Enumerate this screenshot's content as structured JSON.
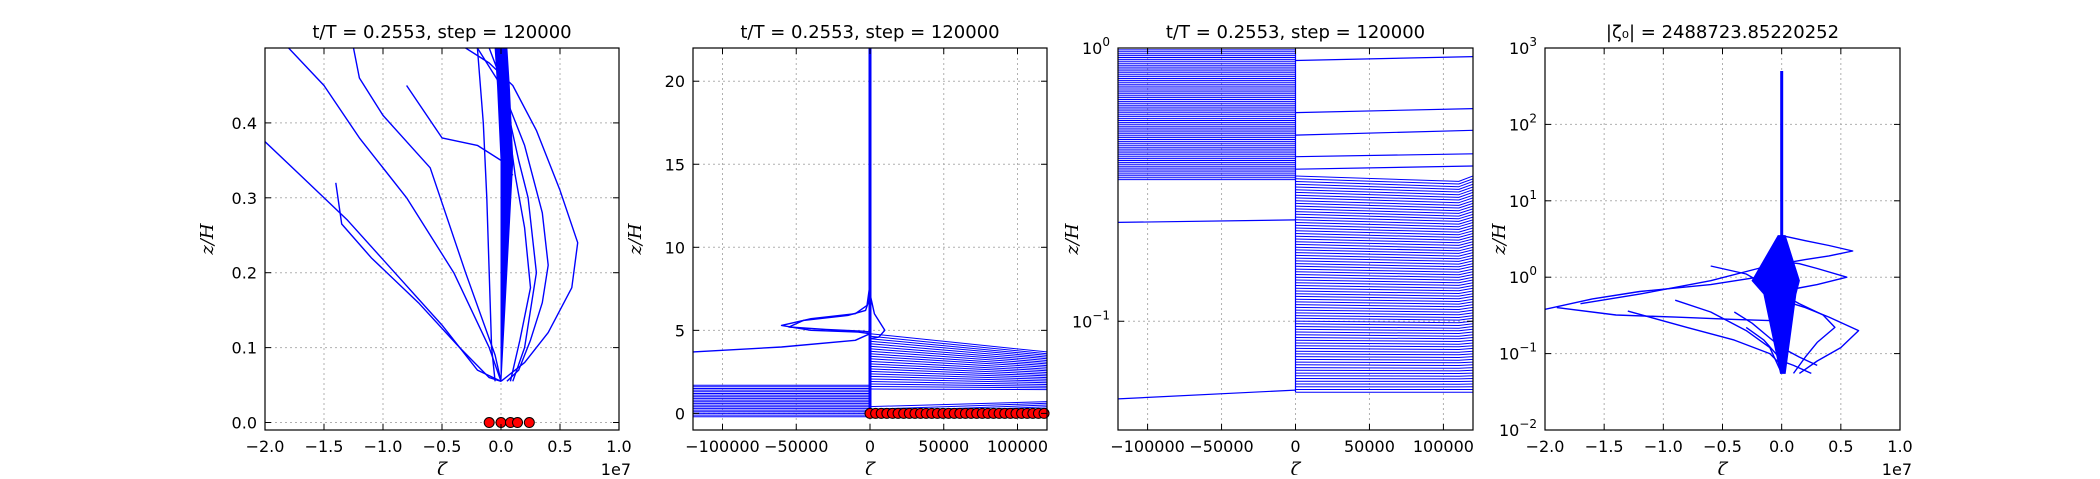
{
  "chart_data": [
    {
      "type": "line",
      "title": "t/T = 0.2553, step = 120000",
      "xlabel": "ζ",
      "ylabel": "z/H",
      "xscale": "linear",
      "yscale": "linear",
      "xlim": [
        -20000000,
        10000000
      ],
      "ylim": [
        -0.01,
        0.5
      ],
      "xticks": [
        -20000000,
        -15000000,
        -10000000,
        -5000000,
        0,
        5000000,
        10000000
      ],
      "xtick_labels": [
        "−2.0",
        "−1.5",
        "−1.0",
        "−0.5",
        "0.0",
        "0.5",
        "1.0"
      ],
      "yticks": [
        0.0,
        0.1,
        0.2,
        0.3,
        0.4
      ],
      "ytick_labels": [
        "0.0",
        "0.1",
        "0.2",
        "0.3",
        "0.4"
      ],
      "offset_label": "1e7",
      "grid": true,
      "line_color": "#0000ff",
      "marker_color": "#ff0000",
      "series": [
        {
          "x": [
            -18000000,
            -15000000,
            -12000000,
            -8000000,
            -4000000,
            -1000000,
            0
          ],
          "y": [
            0.5,
            0.45,
            0.38,
            0.3,
            0.2,
            0.1,
            0.055
          ]
        },
        {
          "x": [
            -20000000,
            -17000000,
            -13000000,
            -9000000,
            -5000000,
            -2000000,
            0
          ],
          "y": [
            0.375,
            0.33,
            0.27,
            0.2,
            0.13,
            0.07,
            0.055
          ]
        },
        {
          "x": [
            -14000000,
            -13500000,
            -11000000,
            -7000000,
            -3500000,
            -1000000,
            0
          ],
          "y": [
            0.32,
            0.265,
            0.22,
            0.16,
            0.1,
            0.06,
            0.055
          ]
        },
        {
          "x": [
            -12500000,
            -12000000,
            -10000000,
            -6000000,
            -3000000,
            -500000,
            0
          ],
          "y": [
            0.5,
            0.46,
            0.41,
            0.34,
            0.2,
            0.09,
            0.055
          ]
        },
        {
          "x": [
            -8000000,
            -5000000,
            -2000000,
            0,
            1000000
          ],
          "y": [
            0.45,
            0.38,
            0.37,
            0.35,
            0.33
          ]
        },
        {
          "x": [
            -2000000,
            -1500000,
            -1200000,
            -1000000,
            -800000,
            -500000
          ],
          "y": [
            0.5,
            0.4,
            0.3,
            0.2,
            0.1,
            0.055
          ]
        },
        {
          "x": [
            -3000000,
            -1000000,
            1000000,
            3000000,
            5000000,
            6500000,
            6000000,
            4000000,
            2000000,
            0
          ],
          "y": [
            0.5,
            0.48,
            0.45,
            0.39,
            0.31,
            0.24,
            0.18,
            0.12,
            0.08,
            0.055
          ]
        },
        {
          "x": [
            -2000000,
            0,
            2000000,
            3500000,
            4000000,
            3500000,
            2500000,
            1500000,
            500000
          ],
          "y": [
            0.5,
            0.45,
            0.37,
            0.28,
            0.21,
            0.16,
            0.11,
            0.07,
            0.055
          ]
        },
        {
          "x": [
            -1000000,
            200000,
            800000,
            1500000,
            2300000,
            3000000,
            2000000,
            1000000
          ],
          "y": [
            0.5,
            0.45,
            0.4,
            0.35,
            0.3,
            0.2,
            0.1,
            0.055
          ]
        },
        {
          "x": [
            0,
            300000,
            600000,
            1200000,
            2000000,
            2500000,
            1600000,
            800000
          ],
          "y": [
            0.5,
            0.46,
            0.4,
            0.33,
            0.26,
            0.18,
            0.11,
            0.055
          ]
        }
      ],
      "band": {
        "x_left": [
          -500000,
          -300000,
          0,
          0
        ],
        "x_right": [
          500000,
          700000,
          1000000,
          0
        ],
        "y": [
          0.5,
          0.45,
          0.35,
          0.055
        ]
      },
      "markers": {
        "x": [
          -1000000,
          0,
          800000,
          1400000,
          2400000
        ],
        "y": [
          0,
          0,
          0,
          0,
          0
        ]
      }
    },
    {
      "type": "line",
      "title": "t/T = 0.2553, step = 120000",
      "xlabel": "ζ",
      "ylabel": "z/H",
      "xscale": "linear",
      "yscale": "linear",
      "xlim": [
        -120000,
        120000
      ],
      "ylim": [
        -1,
        22
      ],
      "xticks": [
        -100000,
        -50000,
        0,
        50000,
        100000
      ],
      "xtick_labels": [
        "−100000",
        "−50000",
        "0",
        "50000",
        "100000"
      ],
      "yticks": [
        0,
        5,
        10,
        15,
        20
      ],
      "ytick_labels": [
        "0",
        "5",
        "10",
        "15",
        "20"
      ],
      "grid": true,
      "line_color": "#0000ff",
      "marker_color": "#ff0000",
      "series": [
        {
          "x": [
            0,
            -2000,
            -10000,
            -40000,
            -60000,
            -40000,
            -8000,
            0
          ],
          "y": [
            7.8,
            6.5,
            6.0,
            5.7,
            5.3,
            5.0,
            4.9,
            4.8
          ]
        },
        {
          "x": [
            0,
            -3000,
            -15000,
            -45000,
            -55000,
            -30000,
            -5000,
            0
          ],
          "y": [
            7.0,
            6.2,
            5.9,
            5.6,
            5.2,
            5.05,
            4.95,
            4.9
          ]
        },
        {
          "x": [
            0,
            3000,
            10000,
            6000,
            0
          ],
          "y": [
            7.2,
            6.0,
            5.0,
            4.6,
            4.5
          ]
        },
        {
          "x": [
            -120000,
            -60000,
            -10000,
            0
          ],
          "y": [
            3.7,
            4.0,
            4.4,
            4.8
          ]
        }
      ],
      "spike": {
        "x": 0,
        "y_from": 0,
        "y_to": 22
      },
      "dense_left": {
        "y_from": -0.2,
        "y_to": 1.7,
        "x_from": -120000,
        "x_to": 0
      },
      "dense_right": {
        "y_from_left": [
          -0.2,
          4.8
        ],
        "y_from_right": [
          0.3,
          3.7
        ],
        "gap": [
          0.5,
          1.4
        ],
        "x_from": 0,
        "x_to": 120000
      },
      "markers": {
        "x_from": 0,
        "x_to": 118000,
        "count": 32,
        "y": 0
      }
    },
    {
      "type": "line",
      "title": "t/T = 0.2553, step = 120000",
      "xlabel": "ζ",
      "ylabel": "z/H",
      "xscale": "linear",
      "yscale": "log",
      "xlim": [
        -120000,
        120000
      ],
      "ylim": [
        0.04,
        1
      ],
      "xticks": [
        -100000,
        -50000,
        0,
        50000,
        100000
      ],
      "xtick_labels": [
        "−100000",
        "−50000",
        "0",
        "50000",
        "100000"
      ],
      "yticks": [
        0.1,
        1
      ],
      "ytick_labels": [
        "10^-1",
        "10^0"
      ],
      "grid": true,
      "line_color": "#0000ff",
      "blocks": [
        {
          "x_from": -120000,
          "x_to": 0,
          "y_from": 0.33,
          "y_to": 1.0,
          "lines": 70
        },
        {
          "x_from": 0,
          "x_to": 120000,
          "y_from": 0.055,
          "y_to": 0.34,
          "lines": 80,
          "chevron": true
        }
      ],
      "single_lines": [
        {
          "x": [
            -120000,
            0
          ],
          "y": [
            0.23,
            0.235
          ]
        },
        {
          "x": [
            -120000,
            0
          ],
          "y": [
            0.052,
            0.056
          ]
        },
        {
          "x": [
            0,
            120000
          ],
          "y": [
            0.9,
            0.93
          ]
        },
        {
          "x": [
            0,
            120000
          ],
          "y": [
            0.58,
            0.6
          ]
        },
        {
          "x": [
            0,
            120000
          ],
          "y": [
            0.48,
            0.5
          ]
        },
        {
          "x": [
            0,
            120000
          ],
          "y": [
            0.4,
            0.41
          ]
        },
        {
          "x": [
            0,
            120000
          ],
          "y": [
            0.36,
            0.37
          ]
        }
      ]
    },
    {
      "type": "line",
      "title": "|ζ₀| = 2488723.85220252",
      "xlabel": "ζ",
      "ylabel": "z/H",
      "xscale": "linear",
      "yscale": "log",
      "xlim": [
        -20000000,
        10000000
      ],
      "ylim": [
        0.01,
        1000
      ],
      "xticks": [
        -20000000,
        -15000000,
        -10000000,
        -5000000,
        0,
        5000000,
        10000000
      ],
      "xtick_labels": [
        "−2.0",
        "−1.5",
        "−1.0",
        "−0.5",
        "0.0",
        "0.5",
        "1.0"
      ],
      "yticks": [
        0.01,
        0.1,
        1,
        10,
        100,
        1000
      ],
      "ytick_labels": [
        "10^-2",
        "10^-1",
        "10^0",
        "10^1",
        "10^2",
        "10^3"
      ],
      "offset_label": "1e7",
      "grid": true,
      "line_color": "#0000ff",
      "spike": {
        "x": 0,
        "y_from": 0.055,
        "y_to": 500
      },
      "series": [
        {
          "x": [
            -20000000,
            -16000000,
            -12000000,
            -6000000,
            -2000000,
            0
          ],
          "y": [
            0.38,
            0.52,
            0.65,
            0.8,
            1.0,
            1.2
          ]
        },
        {
          "x": [
            -19000000,
            -14000000,
            -9000000,
            -4000000,
            -1000000,
            0
          ],
          "y": [
            0.4,
            0.32,
            0.3,
            0.28,
            0.27,
            0.26
          ]
        },
        {
          "x": [
            -17000000,
            -12000000,
            -6000000,
            -2000000,
            0
          ],
          "y": [
            0.45,
            0.6,
            0.9,
            1.3,
            1.6
          ]
        },
        {
          "x": [
            -13000000,
            -8000000,
            -4000000,
            -1000000,
            0
          ],
          "y": [
            0.36,
            0.22,
            0.15,
            0.1,
            0.07
          ]
        },
        {
          "x": [
            -9000000,
            -6000000,
            -3000000,
            -1000000,
            0
          ],
          "y": [
            0.5,
            0.35,
            0.2,
            0.12,
            0.055
          ]
        },
        {
          "x": [
            -6000000,
            -3000000,
            -2000000,
            -1000000,
            0
          ],
          "y": [
            1.4,
            1.1,
            0.9,
            0.7,
            0.6
          ]
        },
        {
          "x": [
            0,
            2000000,
            4000000,
            6000000,
            4000000,
            2000000,
            0
          ],
          "y": [
            3.5,
            3.0,
            2.6,
            2.2,
            1.9,
            1.7,
            1.5
          ]
        },
        {
          "x": [
            0,
            1500000,
            3000000,
            5500000,
            3000000,
            1000000,
            0
          ],
          "y": [
            1.6,
            1.5,
            1.3,
            1.0,
            0.8,
            0.7,
            0.6
          ]
        },
        {
          "x": [
            0,
            2000000,
            4000000,
            6500000,
            5000000,
            3000000,
            1500000
          ],
          "y": [
            0.5,
            0.4,
            0.3,
            0.2,
            0.12,
            0.08,
            0.055
          ]
        },
        {
          "x": [
            0,
            1500000,
            3500000,
            4500000,
            3000000,
            2000000,
            1000000
          ],
          "y": [
            0.6,
            0.45,
            0.32,
            0.22,
            0.14,
            0.09,
            0.055
          ]
        },
        {
          "x": [
            -3000000,
            -1500000,
            -500000,
            0,
            1000000,
            2500000
          ],
          "y": [
            0.22,
            0.15,
            0.1,
            0.08,
            0.07,
            0.055
          ]
        },
        {
          "x": [
            -4000000,
            -2500000,
            -1000000,
            0,
            1500000,
            3000000
          ],
          "y": [
            0.35,
            0.25,
            0.16,
            0.12,
            0.09,
            0.07
          ]
        }
      ],
      "band": {
        "x_left": [
          -300000,
          -2500000,
          -1500000,
          -100000
        ],
        "x_right": [
          300000,
          1500000,
          1200000,
          300000
        ],
        "y": [
          3.5,
          0.9,
          0.6,
          0.055
        ]
      }
    }
  ]
}
